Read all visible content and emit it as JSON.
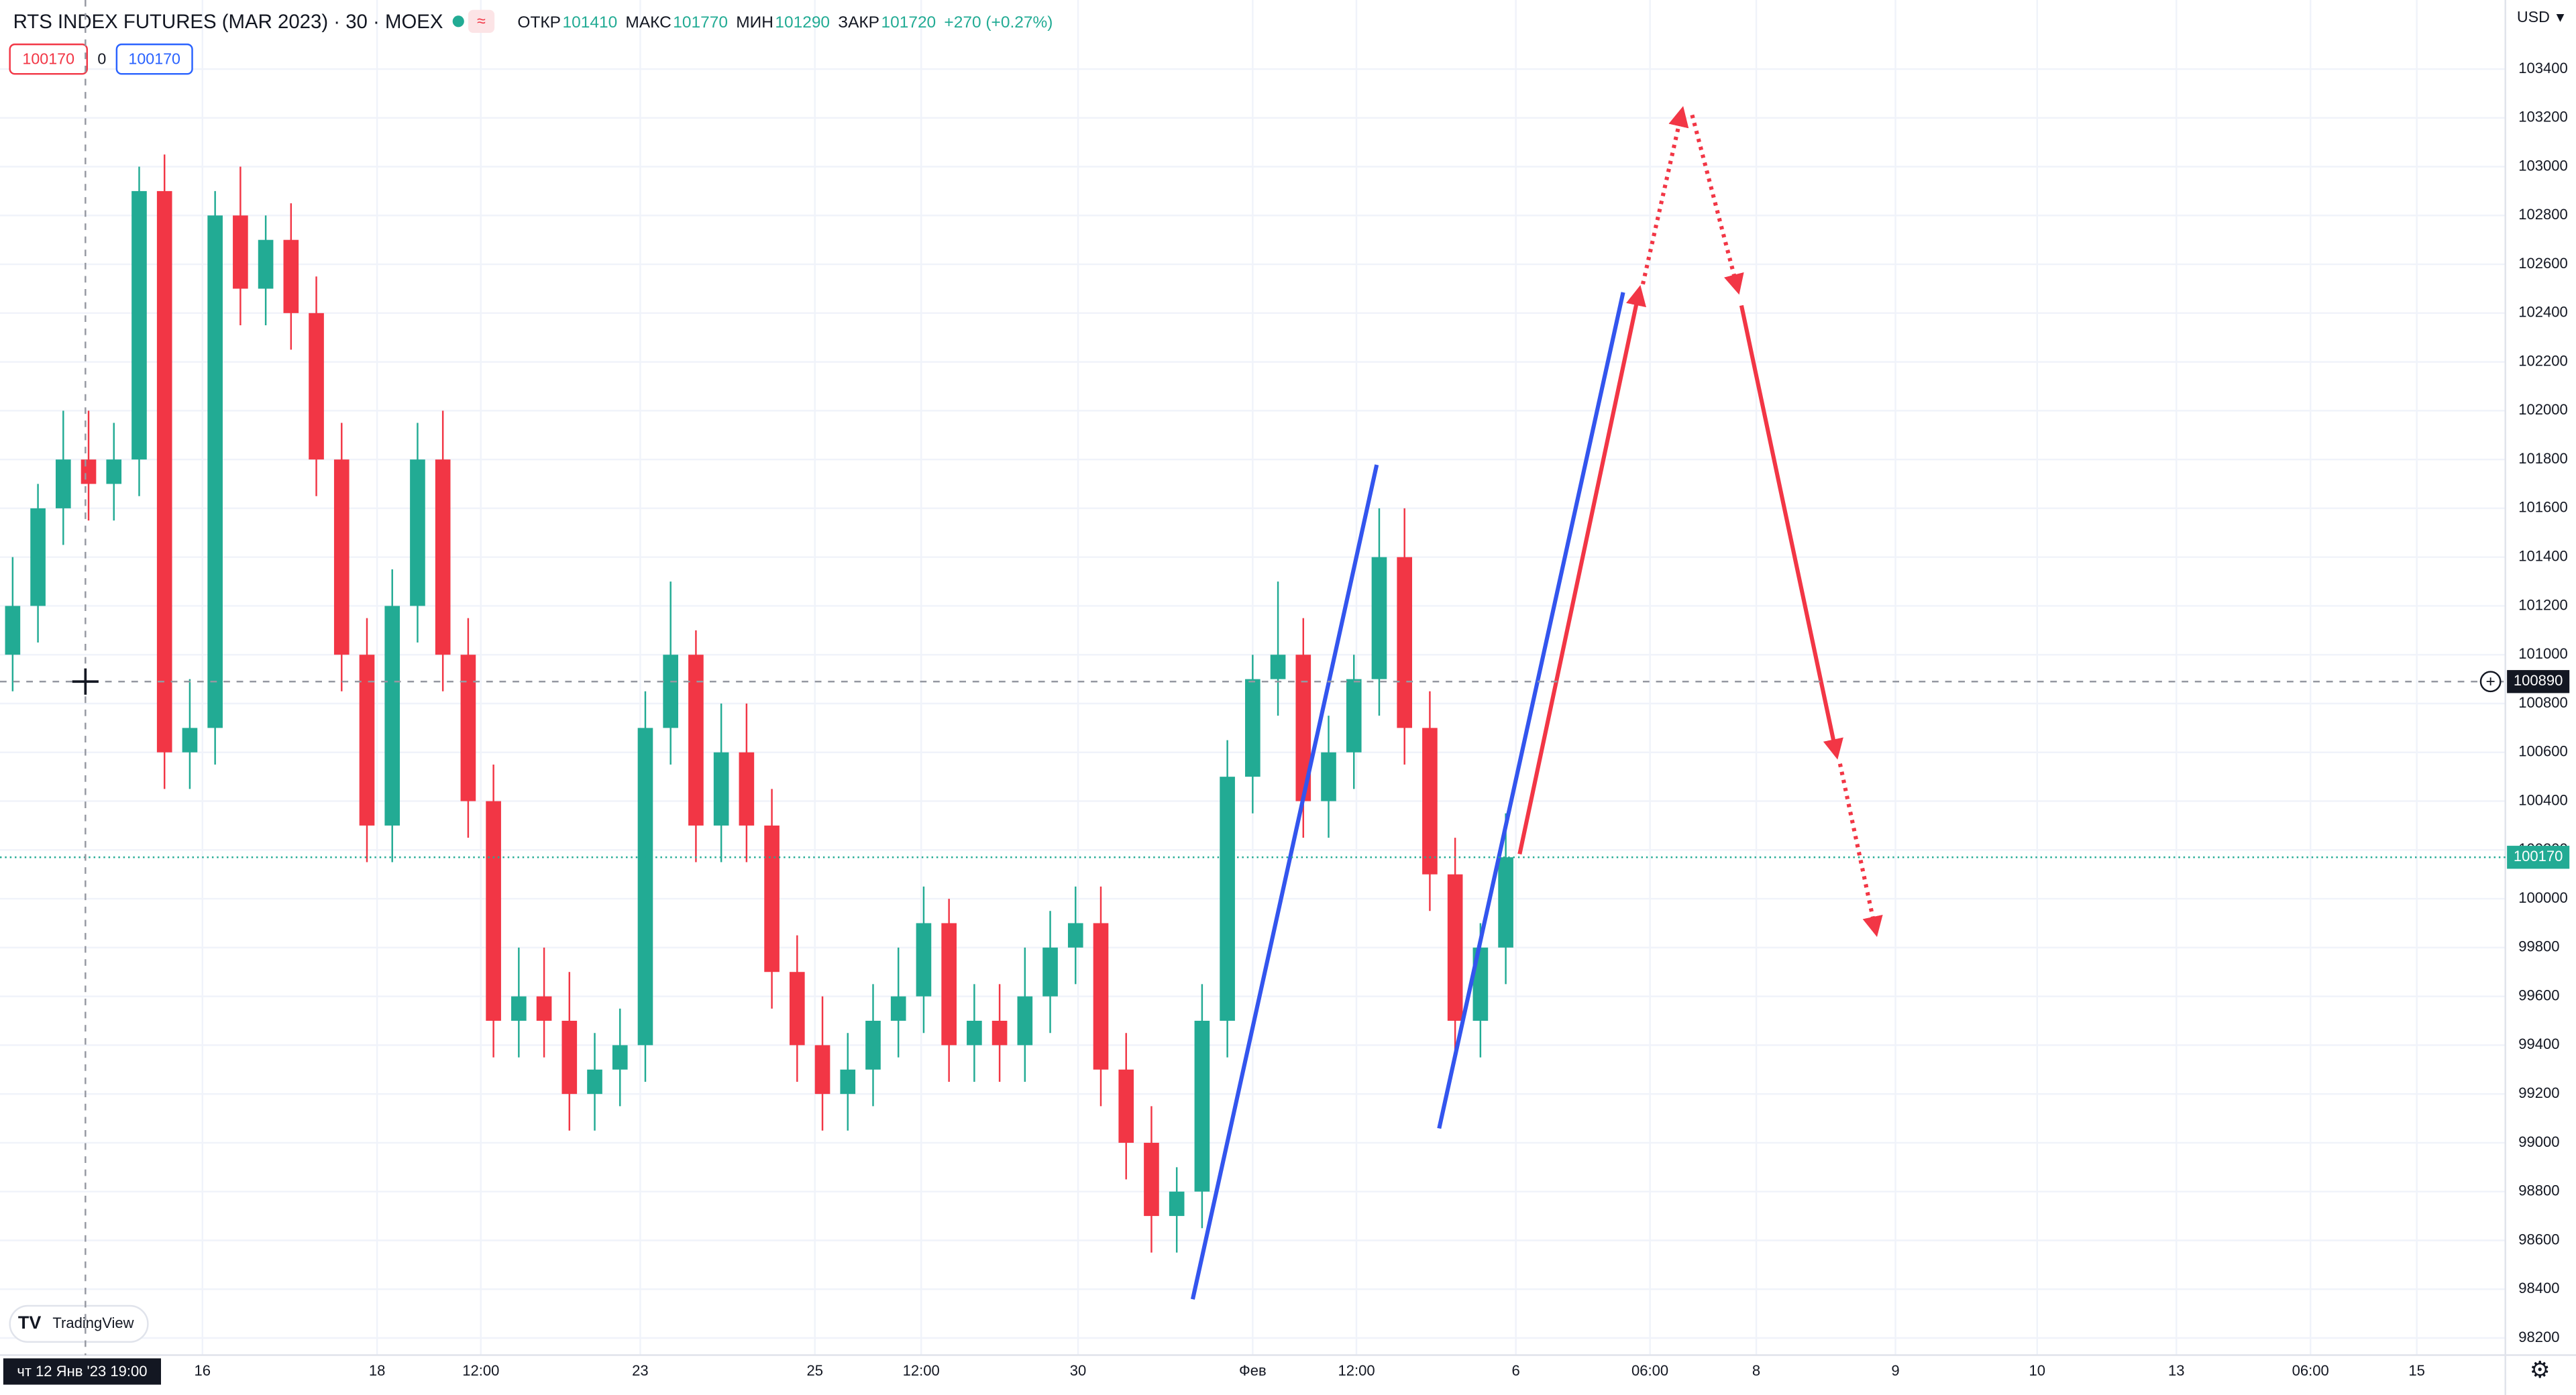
{
  "chart_data": {
    "type": "candlestick",
    "title": "RTS INDEX FUTURES (MAR 2023) · 30 · MOEX",
    "legend": {
      "open_label": "ОТКР",
      "open": 101410,
      "high_label": "МАКС",
      "high": 101770,
      "low_label": "МИН",
      "low": 101290,
      "close_label": "ЗАКР",
      "close": 101720,
      "change": "+270 (+0.27%)"
    },
    "order_buttons": {
      "sell": "100170",
      "spread": "0",
      "buy": "100170"
    },
    "currency": "USD",
    "brand": "TradingView",
    "crosshair_time": "чт 12 Янв '23  19:00",
    "crosshair_price": 100890,
    "last_price": 100170,
    "open": [
      101000,
      101200,
      101600,
      101800,
      101700,
      101800,
      102900,
      100600,
      100700,
      102800,
      102500,
      102700,
      102400,
      101800,
      101000,
      100300,
      101200,
      101800,
      101000,
      100400,
      99500,
      99600,
      99500,
      99200,
      99300,
      99400,
      100700,
      101000,
      100300,
      100600,
      100300,
      99700,
      99400,
      99200,
      99300,
      99500,
      99600,
      99900,
      99400,
      99500,
      99400,
      99600,
      99800,
      99900,
      99300,
      99000,
      98700,
      98800,
      99500,
      100500,
      100900,
      101000,
      100400,
      100600,
      100900,
      101400,
      100700,
      100100,
      99500,
      99800
    ],
    "high": [
      101400,
      101700,
      102000,
      102000,
      101950,
      103000,
      103050,
      100900,
      102900,
      103000,
      102800,
      102850,
      102550,
      101950,
      101150,
      101350,
      101950,
      102000,
      101150,
      100550,
      99800,
      99800,
      99700,
      99450,
      99550,
      100850,
      101300,
      101100,
      100800,
      100800,
      100450,
      99850,
      99600,
      99450,
      99650,
      99800,
      100050,
      100000,
      99650,
      99650,
      99800,
      99950,
      100050,
      100050,
      99450,
      99150,
      98900,
      99650,
      100650,
      101000,
      101300,
      101150,
      100750,
      101000,
      101600,
      101600,
      100850,
      100250,
      99900,
      100350
    ],
    "low": [
      100850,
      101050,
      101450,
      101550,
      101550,
      101650,
      100450,
      100450,
      100550,
      102350,
      102350,
      102250,
      101650,
      100850,
      100150,
      100150,
      101050,
      100850,
      100250,
      99350,
      99350,
      99350,
      99050,
      99050,
      99150,
      99250,
      100550,
      100150,
      100150,
      100150,
      99550,
      99250,
      99050,
      99050,
      99150,
      99350,
      99450,
      99250,
      99250,
      99250,
      99250,
      99450,
      99650,
      99150,
      98850,
      98550,
      98550,
      98650,
      99350,
      100350,
      100750,
      100250,
      100250,
      100450,
      100750,
      100550,
      99950,
      99350,
      99350,
      99650
    ],
    "close": [
      101200,
      101600,
      101800,
      101700,
      101800,
      102900,
      100600,
      100700,
      102800,
      102500,
      102700,
      102400,
      101800,
      101000,
      100300,
      101200,
      101800,
      101000,
      100400,
      99500,
      99600,
      99500,
      99200,
      99300,
      99400,
      100700,
      101000,
      100300,
      100600,
      100300,
      99700,
      99400,
      99200,
      99300,
      99500,
      99600,
      99900,
      99400,
      99500,
      99400,
      99600,
      99800,
      99900,
      99300,
      99000,
      98700,
      98800,
      99500,
      100500,
      100900,
      101000,
      100400,
      100600,
      100900,
      101400,
      100700,
      100100,
      99500,
      99800,
      100170
    ],
    "up_color": "#22ab94",
    "down_color": "#f23645",
    "xlim": [
      -0.5,
      98.5
    ],
    "xticks": [
      {
        "value": 7.5,
        "label": "16"
      },
      {
        "value": 14.4,
        "label": "18"
      },
      {
        "value": 18.5,
        "label": "12:00"
      },
      {
        "value": 24.8,
        "label": "23"
      },
      {
        "value": 31.7,
        "label": "25"
      },
      {
        "value": 35.9,
        "label": "12:00"
      },
      {
        "value": 42.1,
        "label": "30"
      },
      {
        "value": 49.0,
        "label": "Фев"
      },
      {
        "value": 53.1,
        "label": "12:00"
      },
      {
        "value": 59.4,
        "label": "6"
      },
      {
        "value": 64.7,
        "label": "06:00"
      },
      {
        "value": 68.9,
        "label": "8"
      },
      {
        "value": 74.4,
        "label": "9"
      },
      {
        "value": 80.0,
        "label": "10"
      },
      {
        "value": 85.5,
        "label": "13"
      },
      {
        "value": 90.8,
        "label": "06:00"
      },
      {
        "value": 95.0,
        "label": "15"
      }
    ],
    "ylim": [
      98130,
      103683
    ],
    "yticks": [
      98200,
      98400,
      98600,
      98800,
      99000,
      99200,
      99400,
      99600,
      99800,
      100000,
      100200,
      100400,
      100600,
      100800,
      101000,
      101200,
      101400,
      101600,
      101800,
      102000,
      102200,
      102400,
      102600,
      102800,
      103000,
      103200,
      103400
    ],
    "grid": true
  }
}
